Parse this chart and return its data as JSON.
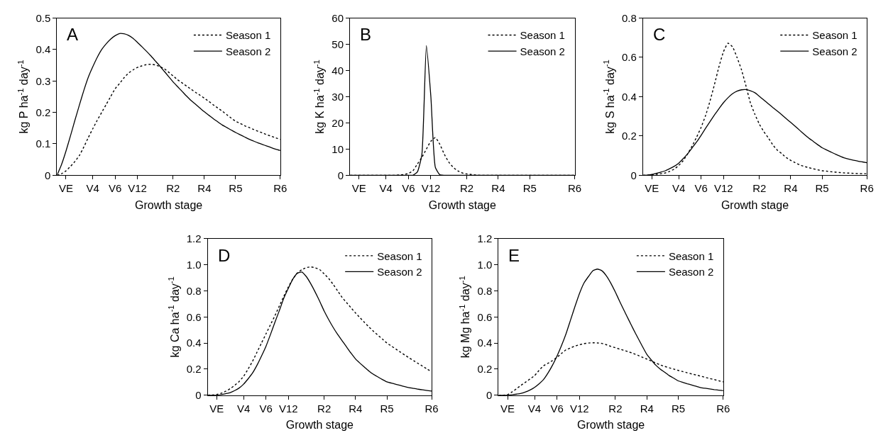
{
  "chart_data": [
    {
      "type": "line",
      "title": "A",
      "xlabel": "Growth stage",
      "ylabel": "kg P ha$^{-1}$ day$^{-1}$",
      "categories": [
        null,
        null,
        "VE",
        null,
        null,
        null,
        null,
        null,
        "V4",
        null,
        null,
        null,
        null,
        "V6",
        null,
        null,
        null,
        null,
        "V12",
        null,
        null,
        null,
        null,
        null,
        null,
        null,
        "R2",
        null,
        null,
        null,
        null,
        null,
        null,
        "R4",
        null,
        null,
        null,
        null,
        null,
        null,
        "R5",
        null,
        null,
        null,
        null,
        null,
        null,
        null,
        null,
        null,
        "R6"
      ],
      "ylim": [
        0,
        0.5
      ],
      "yticks": [
        0,
        0.1,
        0.2,
        0.3,
        0.4,
        0.5
      ],
      "grid": false,
      "legend": "top right",
      "marker": "none",
      "series": [
        {
          "name": "Season 1",
          "color": "#000000",
          "line_style": "dotted",
          "values": [
            0,
            0.005,
            0.014,
            0.028,
            0.044,
            0.063,
            0.09,
            0.12,
            0.148,
            0.175,
            0.2,
            0.225,
            0.25,
            0.275,
            0.292,
            0.31,
            0.325,
            0.335,
            0.343,
            0.348,
            0.352,
            0.353,
            0.351,
            0.346,
            0.339,
            0.328,
            0.316,
            0.304,
            0.294,
            0.284,
            0.274,
            0.264,
            0.255,
            0.245,
            0.235,
            0.224,
            0.214,
            0.204,
            0.193,
            0.182,
            0.172,
            0.165,
            0.158,
            0.152,
            0.146,
            0.14,
            0.135,
            0.129,
            0.124,
            0.119,
            0.114
          ]
        },
        {
          "name": "Season 2",
          "color": "#000000",
          "line_style": "solid",
          "values": [
            0,
            0.034,
            0.077,
            0.125,
            0.175,
            0.223,
            0.27,
            0.312,
            0.345,
            0.375,
            0.4,
            0.418,
            0.433,
            0.444,
            0.451,
            0.45,
            0.445,
            0.436,
            0.423,
            0.409,
            0.395,
            0.38,
            0.364,
            0.348,
            0.331,
            0.314,
            0.297,
            0.282,
            0.267,
            0.252,
            0.238,
            0.226,
            0.214,
            0.202,
            0.191,
            0.18,
            0.17,
            0.16,
            0.152,
            0.144,
            0.136,
            0.129,
            0.122,
            0.115,
            0.109,
            0.103,
            0.098,
            0.093,
            0.088,
            0.083,
            0.079
          ]
        }
      ]
    },
    {
      "type": "line",
      "title": "B",
      "xlabel": "Growth stage",
      "ylabel": "kg K ha$^{-1}$ day$^{-1}$",
      "categories": [
        null,
        null,
        "VE",
        null,
        null,
        null,
        null,
        null,
        "V4",
        null,
        null,
        null,
        null,
        "V6",
        null,
        null,
        null,
        null,
        "V12",
        null,
        null,
        null,
        null,
        null,
        null,
        null,
        "R2",
        null,
        null,
        null,
        null,
        null,
        null,
        "R4",
        null,
        null,
        null,
        null,
        null,
        null,
        "R5",
        null,
        null,
        null,
        null,
        null,
        null,
        null,
        null,
        null,
        "R6"
      ],
      "ylim": [
        0,
        60
      ],
      "yticks": [
        0,
        10,
        20,
        30,
        40,
        50,
        60
      ],
      "grid": false,
      "legend": "top right",
      "marker": "none",
      "series": [
        {
          "name": "Season 1",
          "color": "#000000",
          "line_style": "dotted",
          "values": [
            0,
            0,
            0,
            0,
            0,
            0,
            0,
            0,
            0,
            0,
            0,
            0.1,
            0.3,
            0.7,
            1.7,
            4.3,
            6.8,
            10,
            13,
            14.4,
            11.8,
            8,
            5,
            3,
            1.7,
            0.9,
            0.5,
            0.3,
            0.1,
            0,
            0,
            0,
            0,
            0,
            0,
            0,
            0,
            0,
            0,
            0,
            0,
            0,
            0,
            0,
            0,
            0,
            0,
            0,
            0,
            0,
            0
          ]
        },
        {
          "name": "Season 2",
          "color": "#000000",
          "line_style": "solid",
          "values": [
            0,
            0,
            0,
            0,
            0,
            0,
            0,
            0,
            0,
            0,
            0,
            0,
            0,
            0,
            0,
            1.3,
            8,
            49.5,
            30,
            3,
            0.2,
            0,
            0,
            0,
            0,
            0,
            0,
            0,
            0,
            0,
            0,
            0,
            0,
            0,
            0,
            0,
            0,
            0,
            0,
            0,
            0,
            0,
            0,
            0,
            0,
            0,
            0,
            0,
            0,
            0,
            0
          ]
        }
      ]
    },
    {
      "type": "line",
      "title": "C",
      "xlabel": "Growth stage",
      "ylabel": "kg S ha$^{-1}$ day$^{-1}$",
      "categories": [
        null,
        null,
        "VE",
        null,
        null,
        null,
        null,
        null,
        "V4",
        null,
        null,
        null,
        null,
        "V6",
        null,
        null,
        null,
        null,
        "V12",
        null,
        null,
        null,
        null,
        null,
        null,
        null,
        "R2",
        null,
        null,
        null,
        null,
        null,
        null,
        "R4",
        null,
        null,
        null,
        null,
        null,
        null,
        "R5",
        null,
        null,
        null,
        null,
        null,
        null,
        null,
        null,
        null,
        "R6"
      ],
      "ylim": [
        0,
        0.8
      ],
      "yticks": [
        0,
        0.2,
        0.4,
        0.6,
        0.8
      ],
      "grid": false,
      "legend": "top right",
      "marker": "none",
      "series": [
        {
          "name": "Season 1",
          "color": "#000000",
          "line_style": "dotted",
          "values": [
            0,
            0.001,
            0.003,
            0.005,
            0.008,
            0.012,
            0.02,
            0.032,
            0.05,
            0.075,
            0.11,
            0.15,
            0.195,
            0.245,
            0.305,
            0.38,
            0.465,
            0.555,
            0.63,
            0.672,
            0.654,
            0.6,
            0.537,
            0.455,
            0.368,
            0.31,
            0.26,
            0.222,
            0.19,
            0.155,
            0.128,
            0.11,
            0.09,
            0.076,
            0.064,
            0.053,
            0.045,
            0.039,
            0.033,
            0.028,
            0.023,
            0.021,
            0.018,
            0.016,
            0.014,
            0.012,
            0.011,
            0.01,
            0.009,
            0.008,
            0.008
          ]
        },
        {
          "name": "Season 2",
          "color": "#000000",
          "line_style": "solid",
          "values": [
            0,
            0.001,
            0.004,
            0.01,
            0.016,
            0.023,
            0.034,
            0.046,
            0.062,
            0.085,
            0.11,
            0.14,
            0.17,
            0.204,
            0.24,
            0.274,
            0.308,
            0.34,
            0.37,
            0.395,
            0.415,
            0.428,
            0.435,
            0.436,
            0.43,
            0.42,
            0.402,
            0.383,
            0.364,
            0.345,
            0.327,
            0.308,
            0.288,
            0.269,
            0.249,
            0.229,
            0.209,
            0.19,
            0.173,
            0.156,
            0.14,
            0.129,
            0.118,
            0.107,
            0.097,
            0.088,
            0.082,
            0.077,
            0.072,
            0.068,
            0.064
          ]
        }
      ]
    },
    {
      "type": "line",
      "title": "D",
      "xlabel": "Growth stage",
      "ylabel": "kg Ca ha$^{-1}$ day$^{-1}$",
      "categories": [
        null,
        null,
        "VE",
        null,
        null,
        null,
        null,
        null,
        "V4",
        null,
        null,
        null,
        null,
        "V6",
        null,
        null,
        null,
        null,
        "V12",
        null,
        null,
        null,
        null,
        null,
        null,
        null,
        "R2",
        null,
        null,
        null,
        null,
        null,
        null,
        "R4",
        null,
        null,
        null,
        null,
        null,
        null,
        "R5",
        null,
        null,
        null,
        null,
        null,
        null,
        null,
        null,
        null,
        "R6"
      ],
      "ylim": [
        0,
        1.2
      ],
      "yticks": [
        0,
        {
          "value": 0.2,
          "label": "0.2"
        },
        {
          "value": 0.4,
          "label": "0.4"
        },
        {
          "value": 0.6,
          "label": "0.6"
        },
        {
          "value": 0.8,
          "label": "0.8"
        },
        {
          "value": 1.0,
          "label": "1.0"
        },
        {
          "value": 1.2,
          "label": "1.2"
        }
      ],
      "grid": false,
      "legend": "top right",
      "marker": "none",
      "series": [
        {
          "name": "Season 1",
          "color": "#000000",
          "line_style": "dotted",
          "values": [
            0,
            0.002,
            0.005,
            0.015,
            0.03,
            0.05,
            0.075,
            0.105,
            0.145,
            0.2,
            0.26,
            0.33,
            0.4,
            0.47,
            0.54,
            0.61,
            0.685,
            0.76,
            0.83,
            0.89,
            0.937,
            0.962,
            0.978,
            0.984,
            0.977,
            0.963,
            0.93,
            0.895,
            0.85,
            0.8,
            0.75,
            0.71,
            0.67,
            0.63,
            0.594,
            0.558,
            0.523,
            0.49,
            0.46,
            0.43,
            0.4,
            0.377,
            0.354,
            0.331,
            0.308,
            0.286,
            0.264,
            0.243,
            0.222,
            0.2,
            0.18
          ]
        },
        {
          "name": "Season 2",
          "color": "#000000",
          "line_style": "solid",
          "values": [
            0,
            0,
            0,
            0.005,
            0.012,
            0.02,
            0.035,
            0.055,
            0.085,
            0.125,
            0.17,
            0.23,
            0.3,
            0.375,
            0.465,
            0.56,
            0.65,
            0.745,
            0.82,
            0.89,
            0.935,
            0.945,
            0.91,
            0.855,
            0.79,
            0.72,
            0.645,
            0.58,
            0.52,
            0.466,
            0.418,
            0.37,
            0.322,
            0.278,
            0.245,
            0.215,
            0.185,
            0.16,
            0.14,
            0.12,
            0.102,
            0.093,
            0.084,
            0.075,
            0.066,
            0.058,
            0.052,
            0.046,
            0.041,
            0.036,
            0.032
          ]
        }
      ]
    },
    {
      "type": "line",
      "title": "E",
      "xlabel": "Growth stage",
      "ylabel": "kg Mg ha$^{-1}$ day$^{-1}$",
      "categories": [
        null,
        null,
        "VE",
        null,
        null,
        null,
        null,
        null,
        "V4",
        null,
        null,
        null,
        null,
        "V6",
        null,
        null,
        null,
        null,
        "V12",
        null,
        null,
        null,
        null,
        null,
        null,
        null,
        "R2",
        null,
        null,
        null,
        null,
        null,
        null,
        "R4",
        null,
        null,
        null,
        null,
        null,
        null,
        "R5",
        null,
        null,
        null,
        null,
        null,
        null,
        null,
        null,
        null,
        "R6"
      ],
      "ylim": [
        0,
        1.2
      ],
      "yticks": [
        0,
        {
          "value": 0.2,
          "label": "0.2"
        },
        {
          "value": 0.4,
          "label": "0.4"
        },
        {
          "value": 0.6,
          "label": "0.6"
        },
        {
          "value": 0.8,
          "label": "0.8"
        },
        {
          "value": 1.0,
          "label": "1.0"
        },
        {
          "value": 1.2,
          "label": "1.2"
        }
      ],
      "grid": false,
      "legend": "top right",
      "marker": "none",
      "series": [
        {
          "name": "Season 1",
          "color": "#000000",
          "line_style": "dotted",
          "values": [
            0,
            0,
            0.005,
            0.025,
            0.05,
            0.076,
            0.1,
            0.125,
            0.15,
            0.19,
            0.225,
            0.245,
            0.265,
            0.29,
            0.32,
            0.348,
            0.362,
            0.377,
            0.387,
            0.395,
            0.4,
            0.402,
            0.401,
            0.397,
            0.387,
            0.374,
            0.364,
            0.353,
            0.343,
            0.332,
            0.32,
            0.306,
            0.291,
            0.277,
            0.262,
            0.247,
            0.232,
            0.22,
            0.21,
            0.2,
            0.19,
            0.181,
            0.172,
            0.163,
            0.155,
            0.146,
            0.137,
            0.128,
            0.12,
            0.111,
            0.102
          ]
        },
        {
          "name": "Season 2",
          "color": "#000000",
          "line_style": "solid",
          "values": [
            0,
            0,
            0,
            0.003,
            0.008,
            0.014,
            0.025,
            0.04,
            0.06,
            0.087,
            0.12,
            0.17,
            0.23,
            0.3,
            0.38,
            0.47,
            0.575,
            0.68,
            0.78,
            0.86,
            0.91,
            0.955,
            0.967,
            0.954,
            0.915,
            0.858,
            0.79,
            0.716,
            0.645,
            0.575,
            0.506,
            0.44,
            0.375,
            0.313,
            0.27,
            0.23,
            0.2,
            0.175,
            0.15,
            0.13,
            0.11,
            0.099,
            0.088,
            0.078,
            0.068,
            0.058,
            0.053,
            0.048,
            0.043,
            0.039,
            0.035
          ]
        }
      ]
    }
  ]
}
